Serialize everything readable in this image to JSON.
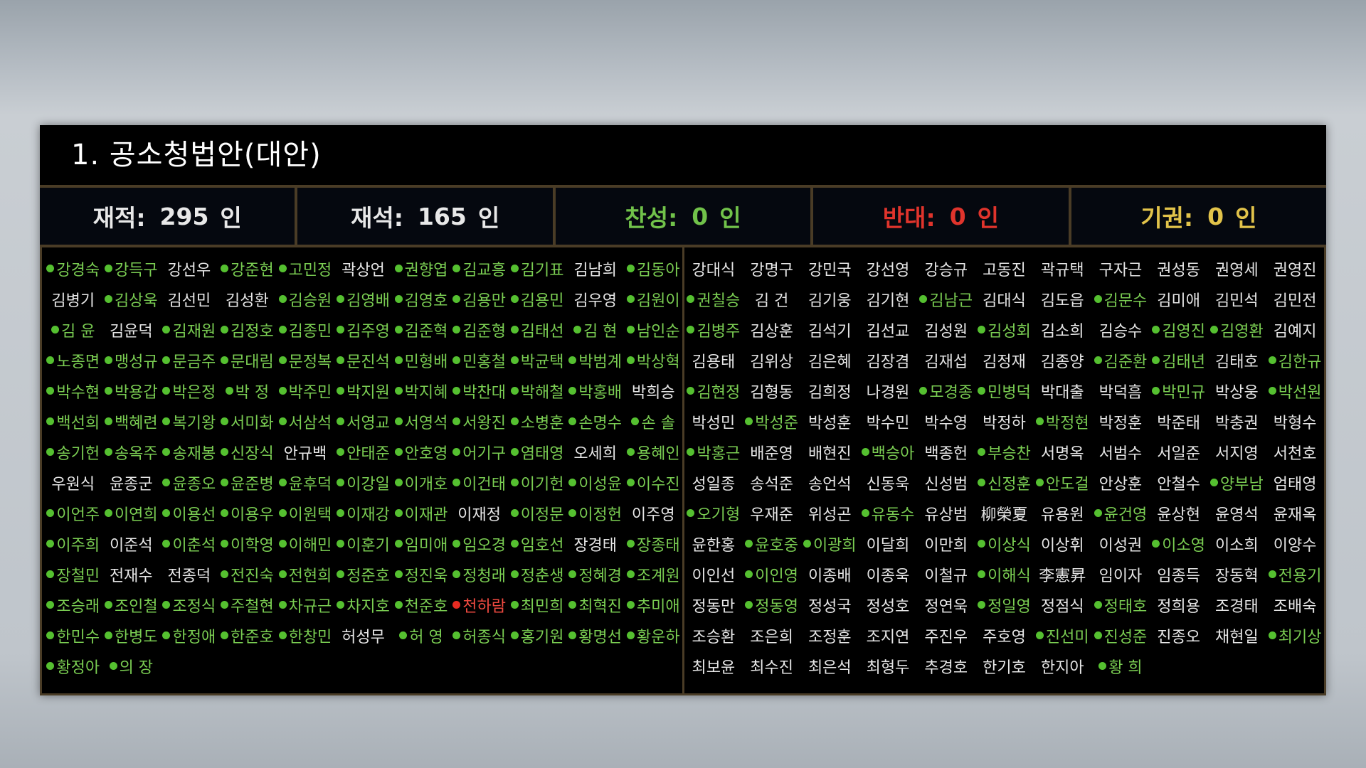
{
  "title": "1. 공소청법안(대안)",
  "stats": {
    "registered_label": "재적:",
    "registered_value": "295",
    "registered_unit": "인",
    "present_label": "재석:",
    "present_value": "165",
    "present_unit": "인",
    "yes_label": "찬성:",
    "yes_value": "0",
    "yes_unit": "인",
    "no_label": "반대:",
    "no_value": "0",
    "no_unit": "인",
    "abstain_label": "기권:",
    "abstain_value": "0",
    "abstain_unit": "인"
  },
  "colors": {
    "voted": "#7acd52",
    "voted_red": "#ef4a40",
    "not_voted": "#e6e6e6",
    "yes": "#71c24a",
    "no": "#e0342c",
    "abstain": "#e2c34a"
  },
  "left_members": [
    {
      "name": "강경숙",
      "status": "green"
    },
    {
      "name": "강득구",
      "status": "green"
    },
    {
      "name": "강선우",
      "status": "none"
    },
    {
      "name": "강준현",
      "status": "green"
    },
    {
      "name": "고민정",
      "status": "green"
    },
    {
      "name": "곽상언",
      "status": "none"
    },
    {
      "name": "권향엽",
      "status": "green"
    },
    {
      "name": "김교흥",
      "status": "green"
    },
    {
      "name": "김기표",
      "status": "green"
    },
    {
      "name": "김남희",
      "status": "none"
    },
    {
      "name": "김동아",
      "status": "green"
    },
    {
      "name": "김병기",
      "status": "none"
    },
    {
      "name": "김상욱",
      "status": "green"
    },
    {
      "name": "김선민",
      "status": "none"
    },
    {
      "name": "김성환",
      "status": "none"
    },
    {
      "name": "김승원",
      "status": "green"
    },
    {
      "name": "김영배",
      "status": "green"
    },
    {
      "name": "김영호",
      "status": "green"
    },
    {
      "name": "김용만",
      "status": "green"
    },
    {
      "name": "김용민",
      "status": "green"
    },
    {
      "name": "김우영",
      "status": "none"
    },
    {
      "name": "김원이",
      "status": "green"
    },
    {
      "name": "김 윤",
      "status": "green"
    },
    {
      "name": "김윤덕",
      "status": "none"
    },
    {
      "name": "김재원",
      "status": "green"
    },
    {
      "name": "김정호",
      "status": "green"
    },
    {
      "name": "김종민",
      "status": "green"
    },
    {
      "name": "김주영",
      "status": "green"
    },
    {
      "name": "김준혁",
      "status": "green"
    },
    {
      "name": "김준형",
      "status": "green"
    },
    {
      "name": "김태선",
      "status": "green"
    },
    {
      "name": "김 현",
      "status": "green"
    },
    {
      "name": "남인순",
      "status": "green"
    },
    {
      "name": "노종면",
      "status": "green"
    },
    {
      "name": "맹성규",
      "status": "green"
    },
    {
      "name": "문금주",
      "status": "green"
    },
    {
      "name": "문대림",
      "status": "green"
    },
    {
      "name": "문정복",
      "status": "green"
    },
    {
      "name": "문진석",
      "status": "green"
    },
    {
      "name": "민형배",
      "status": "green"
    },
    {
      "name": "민홍철",
      "status": "green"
    },
    {
      "name": "박균택",
      "status": "green"
    },
    {
      "name": "박범계",
      "status": "green"
    },
    {
      "name": "박상혁",
      "status": "green"
    },
    {
      "name": "박수현",
      "status": "green"
    },
    {
      "name": "박용갑",
      "status": "green"
    },
    {
      "name": "박은정",
      "status": "green"
    },
    {
      "name": "박 정",
      "status": "green"
    },
    {
      "name": "박주민",
      "status": "green"
    },
    {
      "name": "박지원",
      "status": "green"
    },
    {
      "name": "박지혜",
      "status": "green"
    },
    {
      "name": "박찬대",
      "status": "green"
    },
    {
      "name": "박해철",
      "status": "green"
    },
    {
      "name": "박홍배",
      "status": "green"
    },
    {
      "name": "박희승",
      "status": "none"
    },
    {
      "name": "백선희",
      "status": "green"
    },
    {
      "name": "백혜련",
      "status": "green"
    },
    {
      "name": "복기왕",
      "status": "green"
    },
    {
      "name": "서미화",
      "status": "green"
    },
    {
      "name": "서삼석",
      "status": "green"
    },
    {
      "name": "서영교",
      "status": "green"
    },
    {
      "name": "서영석",
      "status": "green"
    },
    {
      "name": "서왕진",
      "status": "green"
    },
    {
      "name": "소병훈",
      "status": "green"
    },
    {
      "name": "손명수",
      "status": "green"
    },
    {
      "name": "손 솔",
      "status": "green"
    },
    {
      "name": "송기헌",
      "status": "green"
    },
    {
      "name": "송옥주",
      "status": "green"
    },
    {
      "name": "송재봉",
      "status": "green"
    },
    {
      "name": "신장식",
      "status": "green"
    },
    {
      "name": "안규백",
      "status": "none"
    },
    {
      "name": "안태준",
      "status": "green"
    },
    {
      "name": "안호영",
      "status": "green"
    },
    {
      "name": "어기구",
      "status": "green"
    },
    {
      "name": "염태영",
      "status": "green"
    },
    {
      "name": "오세희",
      "status": "none"
    },
    {
      "name": "용혜인",
      "status": "green"
    },
    {
      "name": "우원식",
      "status": "none"
    },
    {
      "name": "윤종군",
      "status": "none"
    },
    {
      "name": "윤종오",
      "status": "green"
    },
    {
      "name": "윤준병",
      "status": "green"
    },
    {
      "name": "윤후덕",
      "status": "green"
    },
    {
      "name": "이강일",
      "status": "green"
    },
    {
      "name": "이개호",
      "status": "green"
    },
    {
      "name": "이건태",
      "status": "green"
    },
    {
      "name": "이기헌",
      "status": "green"
    },
    {
      "name": "이성윤",
      "status": "green"
    },
    {
      "name": "이수진",
      "status": "green"
    },
    {
      "name": "이언주",
      "status": "green"
    },
    {
      "name": "이연희",
      "status": "green"
    },
    {
      "name": "이용선",
      "status": "green"
    },
    {
      "name": "이용우",
      "status": "green"
    },
    {
      "name": "이원택",
      "status": "green"
    },
    {
      "name": "이재강",
      "status": "green"
    },
    {
      "name": "이재관",
      "status": "green"
    },
    {
      "name": "이재정",
      "status": "none"
    },
    {
      "name": "이정문",
      "status": "green"
    },
    {
      "name": "이정헌",
      "status": "green"
    },
    {
      "name": "이주영",
      "status": "none"
    },
    {
      "name": "이주희",
      "status": "green"
    },
    {
      "name": "이준석",
      "status": "none"
    },
    {
      "name": "이춘석",
      "status": "green"
    },
    {
      "name": "이학영",
      "status": "green"
    },
    {
      "name": "이해민",
      "status": "green"
    },
    {
      "name": "이훈기",
      "status": "green"
    },
    {
      "name": "임미애",
      "status": "green"
    },
    {
      "name": "임오경",
      "status": "green"
    },
    {
      "name": "임호선",
      "status": "green"
    },
    {
      "name": "장경태",
      "status": "none"
    },
    {
      "name": "장종태",
      "status": "green"
    },
    {
      "name": "장철민",
      "status": "green"
    },
    {
      "name": "전재수",
      "status": "none"
    },
    {
      "name": "전종덕",
      "status": "none"
    },
    {
      "name": "전진숙",
      "status": "green"
    },
    {
      "name": "전현희",
      "status": "green"
    },
    {
      "name": "정준호",
      "status": "green"
    },
    {
      "name": "정진욱",
      "status": "green"
    },
    {
      "name": "정청래",
      "status": "green"
    },
    {
      "name": "정춘생",
      "status": "green"
    },
    {
      "name": "정혜경",
      "status": "green"
    },
    {
      "name": "조계원",
      "status": "green"
    },
    {
      "name": "조승래",
      "status": "green"
    },
    {
      "name": "조인철",
      "status": "green"
    },
    {
      "name": "조정식",
      "status": "green"
    },
    {
      "name": "주철현",
      "status": "green"
    },
    {
      "name": "차규근",
      "status": "green"
    },
    {
      "name": "차지호",
      "status": "green"
    },
    {
      "name": "천준호",
      "status": "green"
    },
    {
      "name": "천하람",
      "status": "red"
    },
    {
      "name": "최민희",
      "status": "green"
    },
    {
      "name": "최혁진",
      "status": "green"
    },
    {
      "name": "추미애",
      "status": "green"
    },
    {
      "name": "한민수",
      "status": "green"
    },
    {
      "name": "한병도",
      "status": "green"
    },
    {
      "name": "한정애",
      "status": "green"
    },
    {
      "name": "한준호",
      "status": "green"
    },
    {
      "name": "한창민",
      "status": "green"
    },
    {
      "name": "허성무",
      "status": "none"
    },
    {
      "name": "허 영",
      "status": "green"
    },
    {
      "name": "허종식",
      "status": "green"
    },
    {
      "name": "홍기원",
      "status": "green"
    },
    {
      "name": "황명선",
      "status": "green"
    },
    {
      "name": "황운하",
      "status": "green"
    },
    {
      "name": "황정아",
      "status": "green"
    },
    {
      "name": "의 장",
      "status": "green"
    }
  ],
  "right_members": [
    {
      "name": "강대식",
      "status": "none"
    },
    {
      "name": "강명구",
      "status": "none"
    },
    {
      "name": "강민국",
      "status": "none"
    },
    {
      "name": "강선영",
      "status": "none"
    },
    {
      "name": "강승규",
      "status": "none"
    },
    {
      "name": "고동진",
      "status": "none"
    },
    {
      "name": "곽규택",
      "status": "none"
    },
    {
      "name": "구자근",
      "status": "none"
    },
    {
      "name": "권성동",
      "status": "none"
    },
    {
      "name": "권영세",
      "status": "none"
    },
    {
      "name": "권영진",
      "status": "none"
    },
    {
      "name": "권칠승",
      "status": "green"
    },
    {
      "name": "김 건",
      "status": "none"
    },
    {
      "name": "김기웅",
      "status": "none"
    },
    {
      "name": "김기현",
      "status": "none"
    },
    {
      "name": "김남근",
      "status": "green"
    },
    {
      "name": "김대식",
      "status": "none"
    },
    {
      "name": "김도읍",
      "status": "none"
    },
    {
      "name": "김문수",
      "status": "green"
    },
    {
      "name": "김미애",
      "status": "none"
    },
    {
      "name": "김민석",
      "status": "none"
    },
    {
      "name": "김민전",
      "status": "none"
    },
    {
      "name": "김병주",
      "status": "green"
    },
    {
      "name": "김상훈",
      "status": "none"
    },
    {
      "name": "김석기",
      "status": "none"
    },
    {
      "name": "김선교",
      "status": "none"
    },
    {
      "name": "김성원",
      "status": "none"
    },
    {
      "name": "김성회",
      "status": "green"
    },
    {
      "name": "김소희",
      "status": "none"
    },
    {
      "name": "김승수",
      "status": "none"
    },
    {
      "name": "김영진",
      "status": "green"
    },
    {
      "name": "김영환",
      "status": "green"
    },
    {
      "name": "김예지",
      "status": "none"
    },
    {
      "name": "김용태",
      "status": "none"
    },
    {
      "name": "김위상",
      "status": "none"
    },
    {
      "name": "김은혜",
      "status": "none"
    },
    {
      "name": "김장겸",
      "status": "none"
    },
    {
      "name": "김재섭",
      "status": "none"
    },
    {
      "name": "김정재",
      "status": "none"
    },
    {
      "name": "김종양",
      "status": "none"
    },
    {
      "name": "김준환",
      "status": "green"
    },
    {
      "name": "김태년",
      "status": "green"
    },
    {
      "name": "김태호",
      "status": "none"
    },
    {
      "name": "김한규",
      "status": "green"
    },
    {
      "name": "김현정",
      "status": "green"
    },
    {
      "name": "김형동",
      "status": "none"
    },
    {
      "name": "김희정",
      "status": "none"
    },
    {
      "name": "나경원",
      "status": "none"
    },
    {
      "name": "모경종",
      "status": "green"
    },
    {
      "name": "민병덕",
      "status": "green"
    },
    {
      "name": "박대출",
      "status": "none"
    },
    {
      "name": "박덕흠",
      "status": "none"
    },
    {
      "name": "박민규",
      "status": "green"
    },
    {
      "name": "박상웅",
      "status": "none"
    },
    {
      "name": "박선원",
      "status": "green"
    },
    {
      "name": "박성민",
      "status": "none"
    },
    {
      "name": "박성준",
      "status": "green"
    },
    {
      "name": "박성훈",
      "status": "none"
    },
    {
      "name": "박수민",
      "status": "none"
    },
    {
      "name": "박수영",
      "status": "none"
    },
    {
      "name": "박정하",
      "status": "none"
    },
    {
      "name": "박정현",
      "status": "green"
    },
    {
      "name": "박정훈",
      "status": "none"
    },
    {
      "name": "박준태",
      "status": "none"
    },
    {
      "name": "박충권",
      "status": "none"
    },
    {
      "name": "박형수",
      "status": "none"
    },
    {
      "name": "박홍근",
      "status": "green"
    },
    {
      "name": "배준영",
      "status": "none"
    },
    {
      "name": "배현진",
      "status": "none"
    },
    {
      "name": "백승아",
      "status": "green"
    },
    {
      "name": "백종헌",
      "status": "none"
    },
    {
      "name": "부승찬",
      "status": "green"
    },
    {
      "name": "서명옥",
      "status": "none"
    },
    {
      "name": "서범수",
      "status": "none"
    },
    {
      "name": "서일준",
      "status": "none"
    },
    {
      "name": "서지영",
      "status": "none"
    },
    {
      "name": "서천호",
      "status": "none"
    },
    {
      "name": "성일종",
      "status": "none"
    },
    {
      "name": "송석준",
      "status": "none"
    },
    {
      "name": "송언석",
      "status": "none"
    },
    {
      "name": "신동욱",
      "status": "none"
    },
    {
      "name": "신성범",
      "status": "none"
    },
    {
      "name": "신정훈",
      "status": "green"
    },
    {
      "name": "안도걸",
      "status": "green"
    },
    {
      "name": "안상훈",
      "status": "none"
    },
    {
      "name": "안철수",
      "status": "none"
    },
    {
      "name": "양부남",
      "status": "green"
    },
    {
      "name": "엄태영",
      "status": "none"
    },
    {
      "name": "오기형",
      "status": "green"
    },
    {
      "name": "우재준",
      "status": "none"
    },
    {
      "name": "위성곤",
      "status": "none"
    },
    {
      "name": "유동수",
      "status": "green"
    },
    {
      "name": "유상범",
      "status": "none"
    },
    {
      "name": "柳榮夏",
      "status": "none"
    },
    {
      "name": "유용원",
      "status": "none"
    },
    {
      "name": "윤건영",
      "status": "green"
    },
    {
      "name": "윤상현",
      "status": "none"
    },
    {
      "name": "윤영석",
      "status": "none"
    },
    {
      "name": "윤재옥",
      "status": "none"
    },
    {
      "name": "윤한홍",
      "status": "none"
    },
    {
      "name": "윤호중",
      "status": "green"
    },
    {
      "name": "이광희",
      "status": "green"
    },
    {
      "name": "이달희",
      "status": "none"
    },
    {
      "name": "이만희",
      "status": "none"
    },
    {
      "name": "이상식",
      "status": "green"
    },
    {
      "name": "이상휘",
      "status": "none"
    },
    {
      "name": "이성권",
      "status": "none"
    },
    {
      "name": "이소영",
      "status": "green"
    },
    {
      "name": "이소희",
      "status": "none"
    },
    {
      "name": "이양수",
      "status": "none"
    },
    {
      "name": "이인선",
      "status": "none"
    },
    {
      "name": "이인영",
      "status": "green"
    },
    {
      "name": "이종배",
      "status": "none"
    },
    {
      "name": "이종욱",
      "status": "none"
    },
    {
      "name": "이철규",
      "status": "none"
    },
    {
      "name": "이해식",
      "status": "green"
    },
    {
      "name": "李憲昇",
      "status": "none"
    },
    {
      "name": "임이자",
      "status": "none"
    },
    {
      "name": "임종득",
      "status": "none"
    },
    {
      "name": "장동혁",
      "status": "none"
    },
    {
      "name": "전용기",
      "status": "green"
    },
    {
      "name": "정동만",
      "status": "none"
    },
    {
      "name": "정동영",
      "status": "green"
    },
    {
      "name": "정성국",
      "status": "none"
    },
    {
      "name": "정성호",
      "status": "none"
    },
    {
      "name": "정연욱",
      "status": "none"
    },
    {
      "name": "정일영",
      "status": "green"
    },
    {
      "name": "정점식",
      "status": "none"
    },
    {
      "name": "정태호",
      "status": "green"
    },
    {
      "name": "정희용",
      "status": "none"
    },
    {
      "name": "조경태",
      "status": "none"
    },
    {
      "name": "조배숙",
      "status": "none"
    },
    {
      "name": "조승환",
      "status": "none"
    },
    {
      "name": "조은희",
      "status": "none"
    },
    {
      "name": "조정훈",
      "status": "none"
    },
    {
      "name": "조지연",
      "status": "none"
    },
    {
      "name": "주진우",
      "status": "none"
    },
    {
      "name": "주호영",
      "status": "none"
    },
    {
      "name": "진선미",
      "status": "green"
    },
    {
      "name": "진성준",
      "status": "green"
    },
    {
      "name": "진종오",
      "status": "none"
    },
    {
      "name": "채현일",
      "status": "none"
    },
    {
      "name": "최기상",
      "status": "green"
    },
    {
      "name": "최보윤",
      "status": "none"
    },
    {
      "name": "최수진",
      "status": "none"
    },
    {
      "name": "최은석",
      "status": "none"
    },
    {
      "name": "최형두",
      "status": "none"
    },
    {
      "name": "추경호",
      "status": "none"
    },
    {
      "name": "한기호",
      "status": "none"
    },
    {
      "name": "한지아",
      "status": "none"
    },
    {
      "name": "황 희",
      "status": "green"
    }
  ]
}
